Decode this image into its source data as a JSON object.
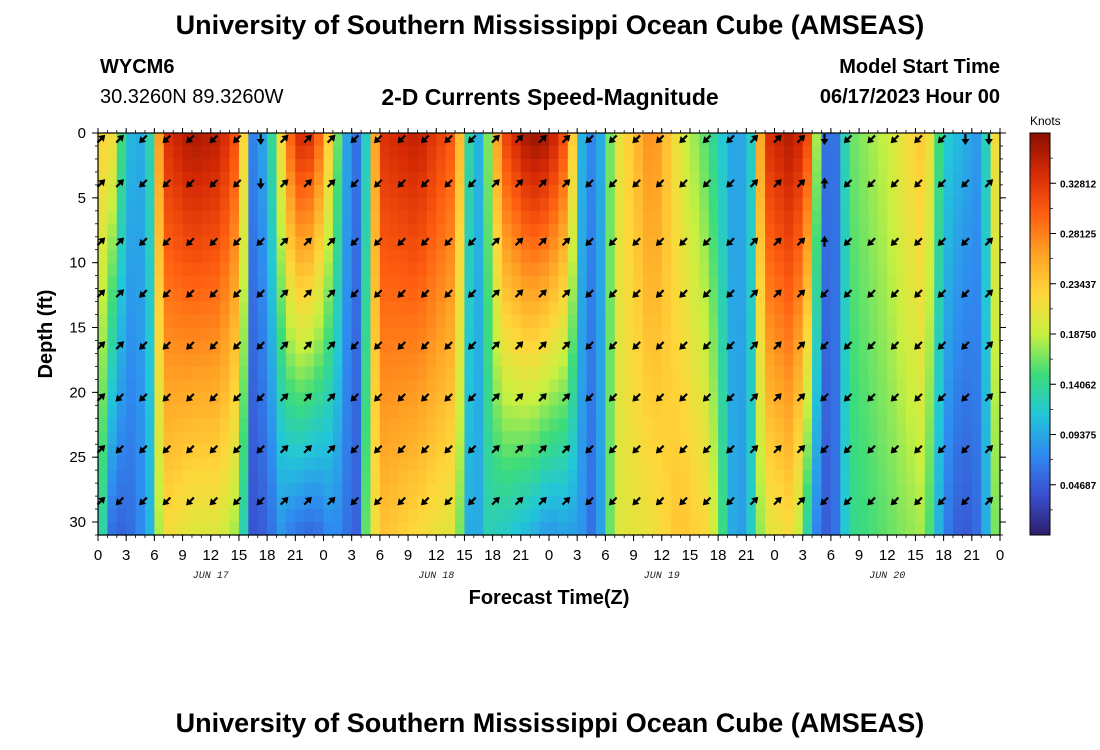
{
  "header": {
    "title": "University of Southern Mississippi Ocean Cube (AMSEAS)",
    "station_id": "WYCM6",
    "station_coords": "30.3260N  89.3260W",
    "subtitle": "2-D Currents Speed-Magnitude",
    "model_start_label": "Model Start Time",
    "model_start_value": "06/17/2023 Hour 00"
  },
  "footer": {
    "title": "University of Southern Mississippi Ocean Cube (AMSEAS)"
  },
  "colorbar": {
    "unit_label": "Knots",
    "ticks": [
      "0.32812",
      "0.28125",
      "0.23437",
      "0.18750",
      "0.14062",
      "0.09375",
      "0.04687"
    ],
    "colors": [
      "#2d1e6b",
      "#3a4fd0",
      "#2f8bf0",
      "#22c7d8",
      "#3ddc7a",
      "#c8f040",
      "#ffd63a",
      "#ffa124",
      "#ff5e10",
      "#d62a05",
      "#8a0f00"
    ]
  },
  "chart_data": {
    "type": "heatmap",
    "title": "2-D Currents Speed-Magnitude",
    "xlabel": "Forecast Time(Z)",
    "ylabel": "Depth (ft)",
    "value_unit": "Knots",
    "x_range_hours": [
      0,
      96
    ],
    "ylim": [
      0,
      31
    ],
    "y_inverted": true,
    "x_tick_labels": [
      "0",
      "3",
      "6",
      "9",
      "12",
      "15",
      "18",
      "21",
      "0",
      "3",
      "6",
      "9",
      "12",
      "15",
      "18",
      "21",
      "0",
      "3",
      "6",
      "9",
      "12",
      "15",
      "18",
      "21",
      "0",
      "3",
      "6",
      "9",
      "12",
      "15",
      "18",
      "21",
      "0"
    ],
    "x_tick_step_hours": 3,
    "day_labels": [
      {
        "label": "JUN 17",
        "hour": 12
      },
      {
        "label": "JUN 18",
        "hour": 36
      },
      {
        "label": "JUN 19",
        "hour": 60
      },
      {
        "label": "JUN 20",
        "hour": 84
      }
    ],
    "y_ticks": [
      0,
      5,
      10,
      15,
      20,
      25,
      30
    ],
    "colorbar_range": [
      0.0,
      0.375
    ],
    "speed_by_hour": [
      {
        "hour": 0,
        "surface": 0.2,
        "bottom": 0.2
      },
      {
        "hour": 1,
        "surface": 0.25,
        "bottom": 0.06
      },
      {
        "hour": 2.5,
        "surface": 0.15,
        "bottom": 0.05
      },
      {
        "hour": 4,
        "surface": 0.08,
        "bottom": 0.06
      },
      {
        "hour": 5.5,
        "surface": 0.13,
        "bottom": 0.1
      },
      {
        "hour": 7,
        "surface": 0.33,
        "bottom": 0.22
      },
      {
        "hour": 10,
        "surface": 0.36,
        "bottom": 0.2
      },
      {
        "hour": 13,
        "surface": 0.35,
        "bottom": 0.2
      },
      {
        "hour": 15,
        "surface": 0.3,
        "bottom": 0.17
      },
      {
        "hour": 16.5,
        "surface": 0.07,
        "bottom": 0.04
      },
      {
        "hour": 18,
        "surface": 0.1,
        "bottom": 0.05
      },
      {
        "hour": 19.5,
        "surface": 0.22,
        "bottom": 0.08
      },
      {
        "hour": 21,
        "surface": 0.34,
        "bottom": 0.06
      },
      {
        "hour": 23,
        "surface": 0.33,
        "bottom": 0.05
      },
      {
        "hour": 25,
        "surface": 0.2,
        "bottom": 0.08
      },
      {
        "hour": 26.5,
        "surface": 0.09,
        "bottom": 0.06
      },
      {
        "hour": 27.5,
        "surface": 0.06,
        "bottom": 0.05
      },
      {
        "hour": 28.5,
        "surface": 0.12,
        "bottom": 0.16
      },
      {
        "hour": 30,
        "surface": 0.33,
        "bottom": 0.24
      },
      {
        "hour": 34,
        "surface": 0.35,
        "bottom": 0.22
      },
      {
        "hour": 38,
        "surface": 0.3,
        "bottom": 0.2
      },
      {
        "hour": 40,
        "surface": 0.08,
        "bottom": 0.06
      },
      {
        "hour": 41,
        "surface": 0.12,
        "bottom": 0.13
      },
      {
        "hour": 43,
        "surface": 0.31,
        "bottom": 0.12
      },
      {
        "hour": 46,
        "surface": 0.37,
        "bottom": 0.1
      },
      {
        "hour": 48,
        "surface": 0.36,
        "bottom": 0.08
      },
      {
        "hour": 50,
        "surface": 0.3,
        "bottom": 0.09
      },
      {
        "hour": 51.5,
        "surface": 0.1,
        "bottom": 0.08
      },
      {
        "hour": 53,
        "surface": 0.06,
        "bottom": 0.05
      },
      {
        "hour": 55,
        "surface": 0.2,
        "bottom": 0.2
      },
      {
        "hour": 59,
        "surface": 0.28,
        "bottom": 0.21
      },
      {
        "hour": 62,
        "surface": 0.2,
        "bottom": 0.24
      },
      {
        "hour": 65,
        "surface": 0.15,
        "bottom": 0.22
      },
      {
        "hour": 68,
        "surface": 0.08,
        "bottom": 0.07
      },
      {
        "hour": 69.5,
        "surface": 0.12,
        "bottom": 0.12
      },
      {
        "hour": 71,
        "surface": 0.33,
        "bottom": 0.2
      },
      {
        "hour": 74,
        "surface": 0.36,
        "bottom": 0.22
      },
      {
        "hour": 76,
        "surface": 0.3,
        "bottom": 0.1
      },
      {
        "hour": 77,
        "surface": 0.06,
        "bottom": 0.04
      },
      {
        "hour": 78.5,
        "surface": 0.06,
        "bottom": 0.06
      },
      {
        "hour": 80,
        "surface": 0.16,
        "bottom": 0.14
      },
      {
        "hour": 84,
        "surface": 0.19,
        "bottom": 0.16
      },
      {
        "hour": 88,
        "surface": 0.24,
        "bottom": 0.18
      },
      {
        "hour": 90,
        "surface": 0.12,
        "bottom": 0.07
      },
      {
        "hour": 92,
        "surface": 0.1,
        "bottom": 0.04
      },
      {
        "hour": 94,
        "surface": 0.08,
        "bottom": 0.06
      },
      {
        "hour": 96,
        "surface": 0.26,
        "bottom": 0.2
      }
    ],
    "arrow_depths_ft": [
      0,
      3.5,
      8,
      12,
      16,
      20,
      24,
      28
    ],
    "arrows": [
      {
        "hour": 0,
        "directions": [
          "ne",
          "ne",
          "ne",
          "ne",
          "ne",
          "ne",
          "ne",
          "ne"
        ]
      },
      {
        "hour": 2,
        "directions": [
          "ne",
          "ne",
          "ne",
          "ne",
          "ne",
          "sw",
          "sw",
          "sw"
        ]
      },
      {
        "hour": 4.5,
        "directions": [
          "sw",
          "sw",
          "sw",
          "sw",
          "sw",
          "sw",
          "sw",
          "sw"
        ]
      },
      {
        "hour": 7,
        "directions": [
          "sw",
          "sw",
          "sw",
          "sw",
          "sw",
          "sw",
          "sw",
          "sw"
        ]
      },
      {
        "hour": 9.5,
        "directions": [
          "sw",
          "sw",
          "sw",
          "sw",
          "sw",
          "sw",
          "sw",
          "sw"
        ]
      },
      {
        "hour": 12,
        "directions": [
          "sw",
          "sw",
          "sw",
          "sw",
          "sw",
          "sw",
          "sw",
          "sw"
        ]
      },
      {
        "hour": 14.5,
        "directions": [
          "sw",
          "sw",
          "sw",
          "sw",
          "sw",
          "sw",
          "sw",
          "sw"
        ]
      },
      {
        "hour": 17,
        "directions": [
          "s",
          "s",
          "sw",
          "sw",
          "sw",
          "sw",
          "sw",
          "sw"
        ]
      },
      {
        "hour": 19.5,
        "directions": [
          "ne",
          "ne",
          "ne",
          "ne",
          "ne",
          "ne",
          "ne",
          "ne"
        ]
      },
      {
        "hour": 22,
        "directions": [
          "ne",
          "ne",
          "ne",
          "ne",
          "ne",
          "ne",
          "ne",
          "ne"
        ]
      },
      {
        "hour": 24.5,
        "directions": [
          "ne",
          "ne",
          "ne",
          "ne",
          "ne",
          "ne",
          "ne",
          "ne"
        ]
      },
      {
        "hour": 27,
        "directions": [
          "sw",
          "sw",
          "sw",
          "sw",
          "sw",
          "sw",
          "sw",
          "sw"
        ]
      },
      {
        "hour": 29.5,
        "directions": [
          "sw",
          "sw",
          "sw",
          "sw",
          "sw",
          "sw",
          "sw",
          "sw"
        ]
      },
      {
        "hour": 32,
        "directions": [
          "sw",
          "sw",
          "sw",
          "sw",
          "sw",
          "sw",
          "sw",
          "sw"
        ]
      },
      {
        "hour": 34.5,
        "directions": [
          "sw",
          "sw",
          "sw",
          "sw",
          "sw",
          "sw",
          "sw",
          "sw"
        ]
      },
      {
        "hour": 37,
        "directions": [
          "sw",
          "sw",
          "sw",
          "sw",
          "sw",
          "sw",
          "sw",
          "sw"
        ]
      },
      {
        "hour": 39.5,
        "directions": [
          "sw",
          "sw",
          "sw",
          "sw",
          "sw",
          "sw",
          "sw",
          "sw"
        ]
      },
      {
        "hour": 42,
        "directions": [
          "ne",
          "ne",
          "ne",
          "ne",
          "ne",
          "ne",
          "ne",
          "ne"
        ]
      },
      {
        "hour": 44.5,
        "directions": [
          "ne",
          "ne",
          "ne",
          "ne",
          "ne",
          "ne",
          "ne",
          "ne"
        ]
      },
      {
        "hour": 47,
        "directions": [
          "ne",
          "ne",
          "ne",
          "ne",
          "ne",
          "ne",
          "ne",
          "ne"
        ]
      },
      {
        "hour": 49.5,
        "directions": [
          "ne",
          "ne",
          "ne",
          "ne",
          "ne",
          "ne",
          "ne",
          "ne"
        ]
      },
      {
        "hour": 52,
        "directions": [
          "sw",
          "sw",
          "sw",
          "sw",
          "sw",
          "sw",
          "sw",
          "sw"
        ]
      },
      {
        "hour": 54.5,
        "directions": [
          "sw",
          "sw",
          "sw",
          "sw",
          "sw",
          "sw",
          "sw",
          "sw"
        ]
      },
      {
        "hour": 57,
        "directions": [
          "sw",
          "sw",
          "sw",
          "sw",
          "sw",
          "sw",
          "sw",
          "sw"
        ]
      },
      {
        "hour": 59.5,
        "directions": [
          "sw",
          "sw",
          "sw",
          "sw",
          "sw",
          "sw",
          "sw",
          "sw"
        ]
      },
      {
        "hour": 62,
        "directions": [
          "sw",
          "sw",
          "sw",
          "sw",
          "sw",
          "sw",
          "sw",
          "sw"
        ]
      },
      {
        "hour": 64.5,
        "directions": [
          "sw",
          "sw",
          "sw",
          "sw",
          "sw",
          "sw",
          "sw",
          "sw"
        ]
      },
      {
        "hour": 67,
        "directions": [
          "sw",
          "sw",
          "sw",
          "sw",
          "sw",
          "sw",
          "sw",
          "sw"
        ]
      },
      {
        "hour": 69.5,
        "directions": [
          "ne",
          "ne",
          "ne",
          "ne",
          "ne",
          "ne",
          "ne",
          "ne"
        ]
      },
      {
        "hour": 72,
        "directions": [
          "ne",
          "ne",
          "ne",
          "ne",
          "ne",
          "ne",
          "ne",
          "ne"
        ]
      },
      {
        "hour": 74.5,
        "directions": [
          "ne",
          "ne",
          "ne",
          "ne",
          "ne",
          "ne",
          "ne",
          "ne"
        ]
      },
      {
        "hour": 77,
        "directions": [
          "s",
          "n",
          "n",
          "sw",
          "sw",
          "sw",
          "sw",
          "sw"
        ]
      },
      {
        "hour": 79.5,
        "directions": [
          "sw",
          "sw",
          "sw",
          "sw",
          "sw",
          "sw",
          "sw",
          "sw"
        ]
      },
      {
        "hour": 82,
        "directions": [
          "sw",
          "sw",
          "sw",
          "sw",
          "sw",
          "sw",
          "sw",
          "sw"
        ]
      },
      {
        "hour": 84.5,
        "directions": [
          "sw",
          "sw",
          "sw",
          "sw",
          "sw",
          "sw",
          "sw",
          "sw"
        ]
      },
      {
        "hour": 87,
        "directions": [
          "sw",
          "sw",
          "sw",
          "sw",
          "sw",
          "sw",
          "sw",
          "sw"
        ]
      },
      {
        "hour": 89.5,
        "directions": [
          "sw",
          "sw",
          "sw",
          "sw",
          "sw",
          "sw",
          "sw",
          "sw"
        ]
      },
      {
        "hour": 92,
        "directions": [
          "s",
          "sw",
          "sw",
          "sw",
          "sw",
          "sw",
          "sw",
          "sw"
        ]
      },
      {
        "hour": 94.5,
        "directions": [
          "s",
          "ne",
          "ne",
          "ne",
          "ne",
          "ne",
          "ne",
          "ne"
        ]
      }
    ]
  }
}
